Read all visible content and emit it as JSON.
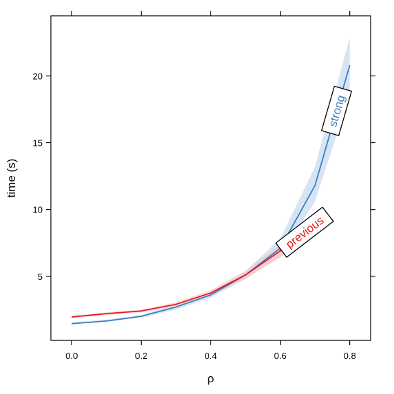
{
  "chart_data": {
    "type": "line",
    "title": "",
    "xlabel": "ρ",
    "ylabel": "time (s)",
    "xlim": [
      -0.06,
      0.86
    ],
    "ylim": [
      0.2,
      24.5
    ],
    "grid": false,
    "legend": "direct labels on lines",
    "x_ticks": [
      0.0,
      0.2,
      0.4,
      0.6,
      0.8
    ],
    "x_tick_labels": [
      "0.0",
      "0.2",
      "0.4",
      "0.6",
      "0.8"
    ],
    "y_ticks": [
      5,
      10,
      15,
      20
    ],
    "y_tick_labels": [
      "5",
      "10",
      "15",
      "20"
    ],
    "series": [
      {
        "name": "strong",
        "color": "#3b7fbf",
        "band_color": "#c6d9ef",
        "x": [
          0.0,
          0.1,
          0.2,
          0.3,
          0.4,
          0.5,
          0.6,
          0.7,
          0.8
        ],
        "y": [
          1.45,
          1.65,
          2.0,
          2.7,
          3.6,
          5.1,
          7.1,
          11.8,
          20.8
        ],
        "lower": [
          1.4,
          1.6,
          1.9,
          2.5,
          3.4,
          4.8,
          6.5,
          10.6,
          18.6
        ],
        "upper": [
          1.55,
          1.75,
          2.1,
          2.9,
          3.8,
          5.4,
          7.8,
          13.2,
          22.9
        ]
      },
      {
        "name": "previous",
        "color": "#e31a1c",
        "band_color": "#f7c9c9",
        "x": [
          0.0,
          0.1,
          0.2,
          0.3,
          0.4,
          0.5,
          0.6,
          0.7
        ],
        "y": [
          1.95,
          2.2,
          2.4,
          2.9,
          3.75,
          5.1,
          6.9,
          8.9
        ],
        "lower": [
          1.85,
          2.1,
          2.3,
          2.75,
          3.55,
          4.8,
          6.4,
          8.4
        ],
        "upper": [
          2.05,
          2.3,
          2.5,
          3.05,
          3.95,
          5.4,
          7.4,
          9.4
        ]
      }
    ]
  }
}
